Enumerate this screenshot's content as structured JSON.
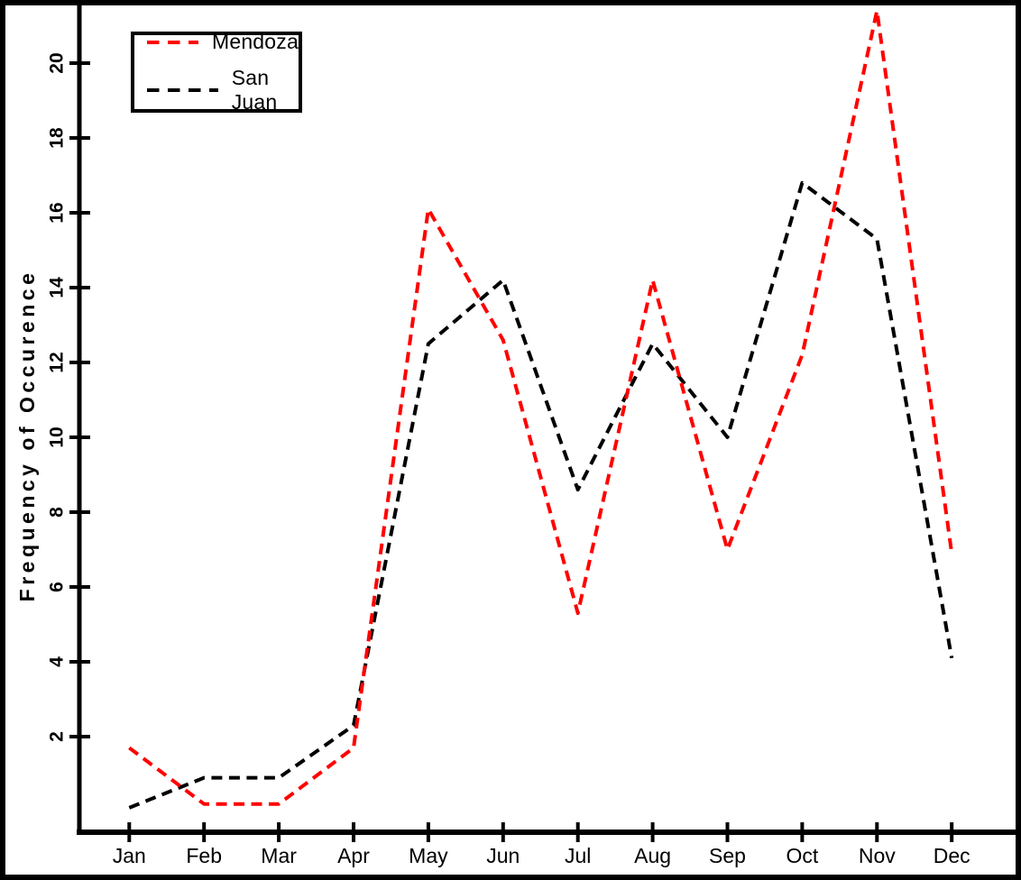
{
  "chart_data": {
    "type": "line",
    "title": "",
    "xlabel": "",
    "ylabel": "Frequency of Occurence",
    "categories": [
      "Jan",
      "Feb",
      "Mar",
      "Apr",
      "May",
      "Jun",
      "Jul",
      "Aug",
      "Sep",
      "Oct",
      "Nov",
      "Dec"
    ],
    "series": [
      {
        "name": "Mendoza",
        "color": "#ff0000",
        "line_style": "dashed",
        "values": [
          1.7,
          0.2,
          0.2,
          1.7,
          16.1,
          12.6,
          5.3,
          14.2,
          7.0,
          12.2,
          21.4,
          6.9
        ]
      },
      {
        "name": "San Juan",
        "color": "#000000",
        "line_style": "dashed",
        "values": [
          0.1,
          0.9,
          0.9,
          2.3,
          12.5,
          14.2,
          8.6,
          12.5,
          10.0,
          16.8,
          15.3,
          4.1
        ]
      }
    ],
    "yticks": [
      2,
      4,
      6,
      8,
      10,
      12,
      14,
      16,
      18,
      20
    ],
    "ylim": [
      -0.5,
      21.6
    ],
    "grid": false,
    "legend_position": "top-left",
    "colors": {
      "axis": "#000000",
      "background": "#ffffff",
      "mendoza": "#ff0000",
      "san_juan": "#000000"
    }
  }
}
